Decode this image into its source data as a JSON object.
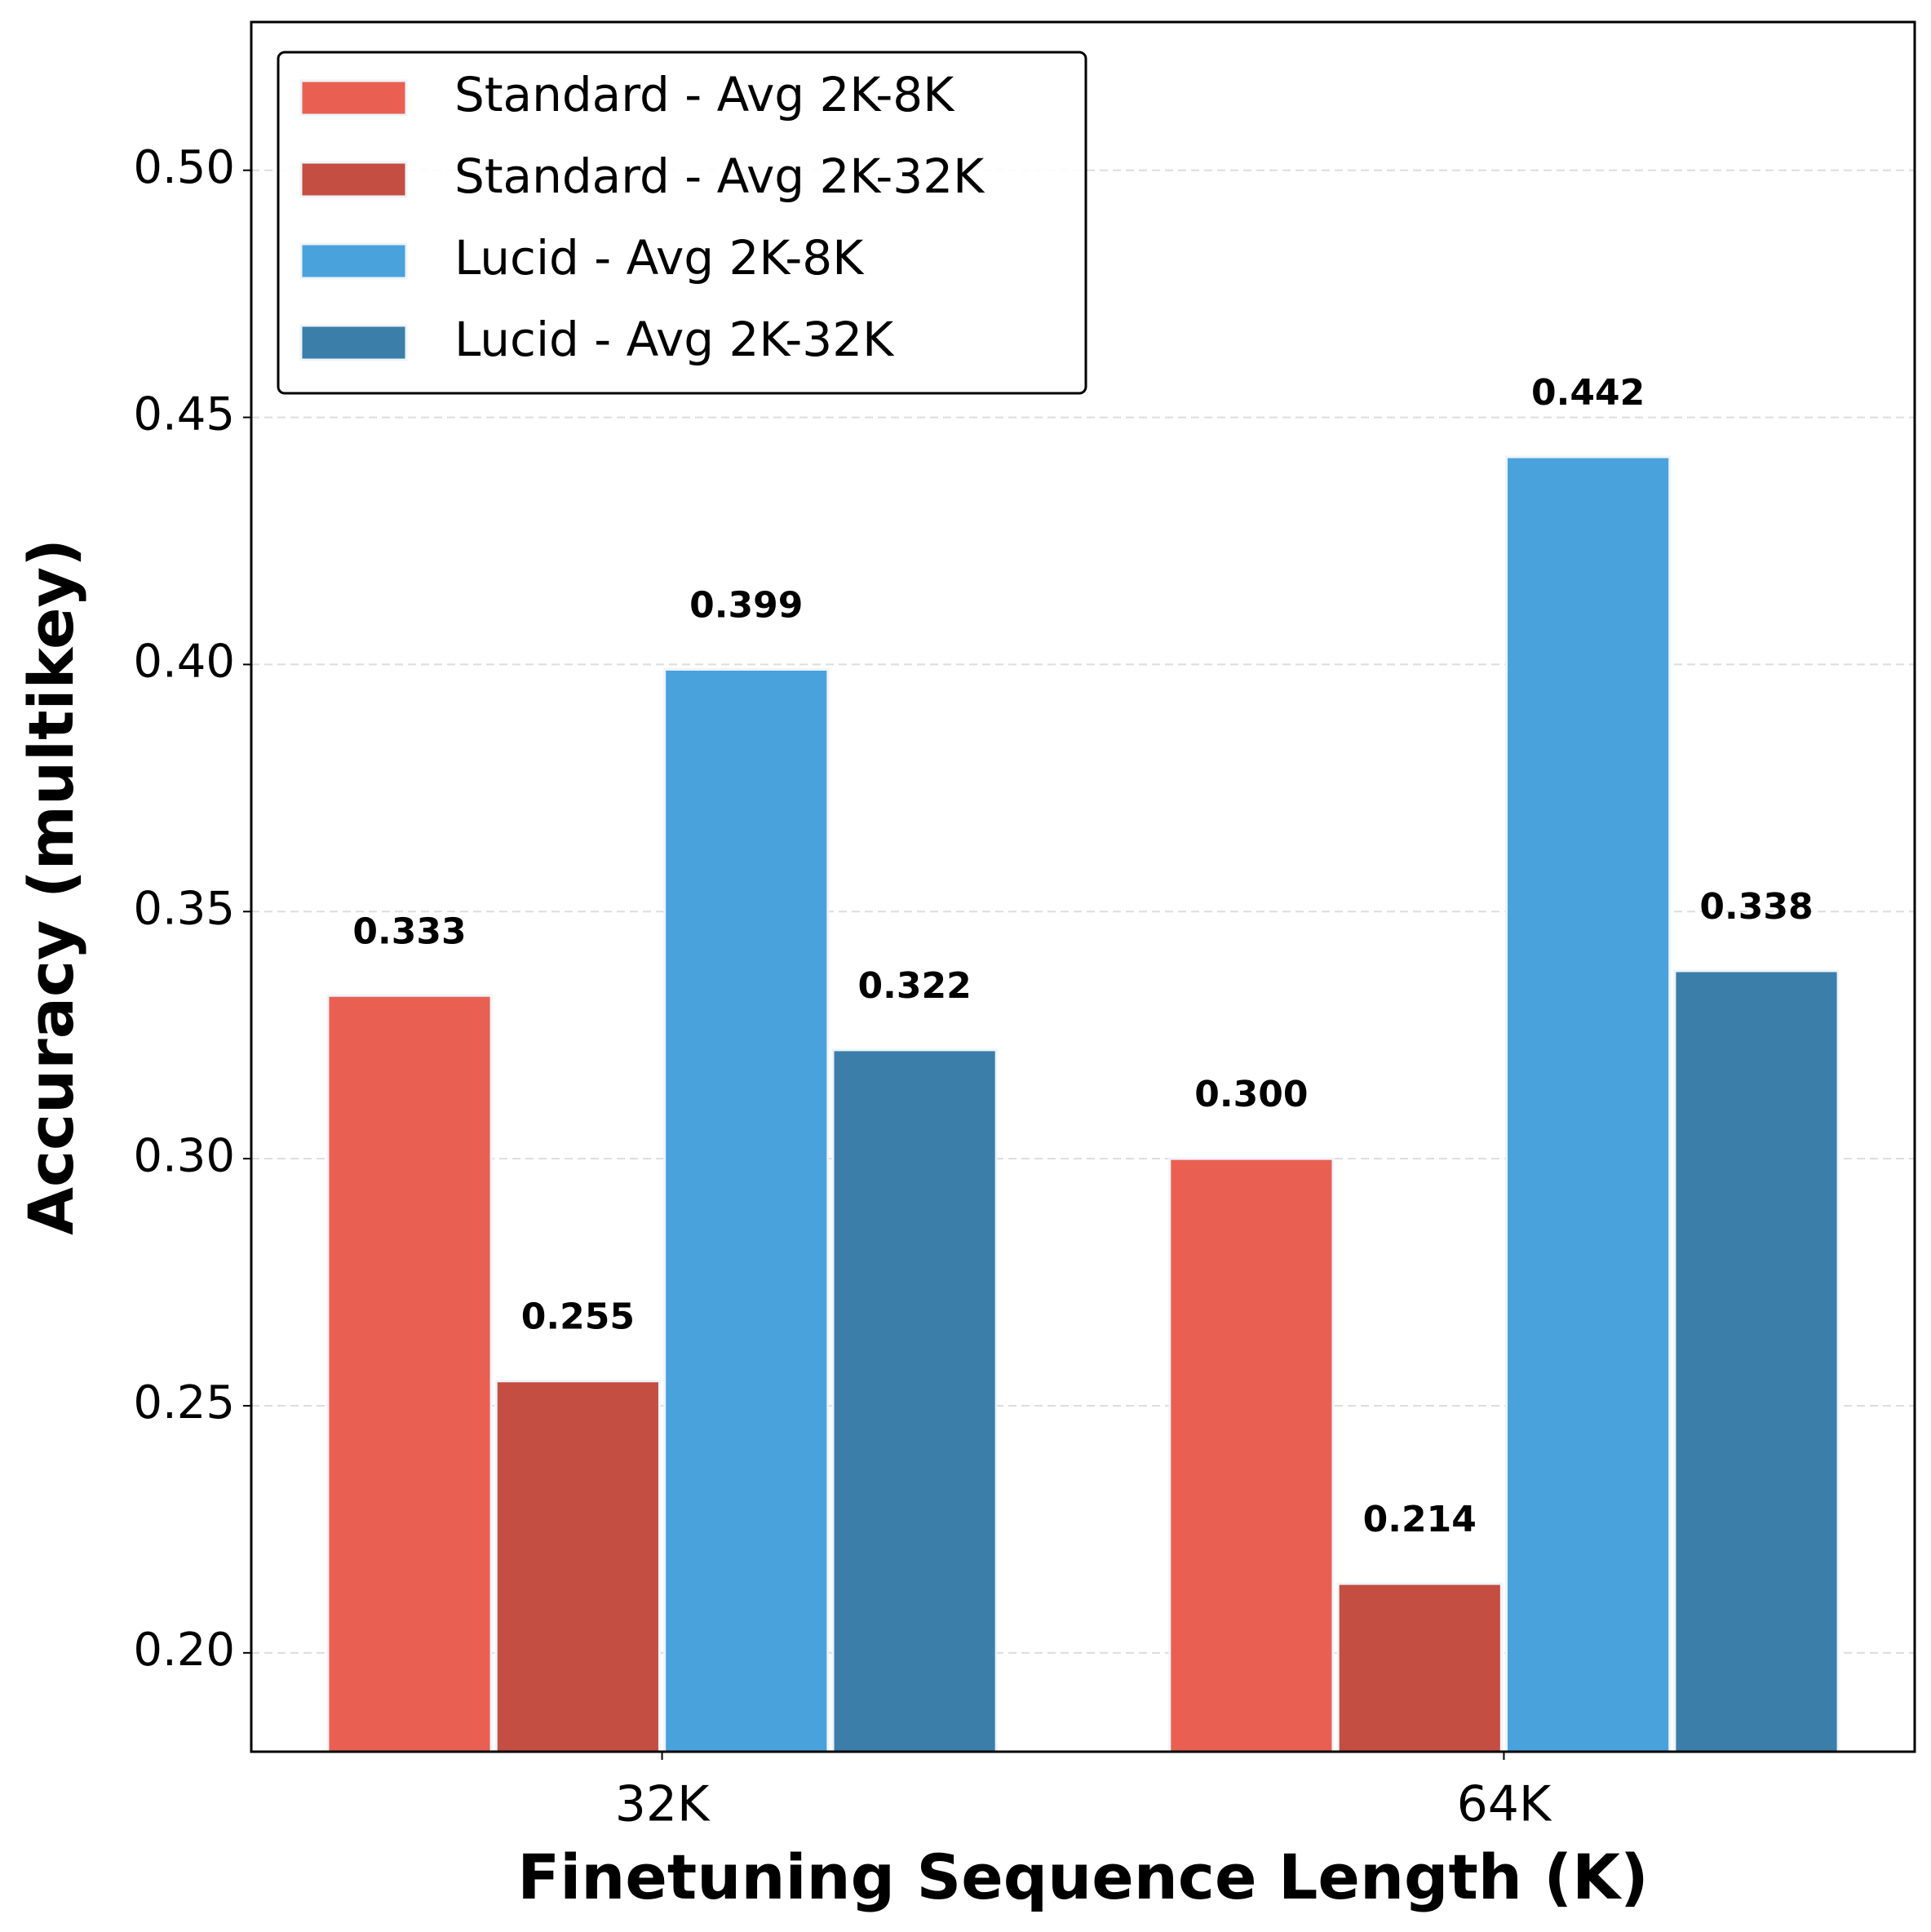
{
  "chart_data": {
    "type": "bar",
    "xlabel": "Finetuning Sequence Length (K)",
    "ylabel": "Accuracy (multikey)",
    "categories": [
      "32K",
      "64K"
    ],
    "series": [
      {
        "name": "Standard - Avg 2K-8K",
        "color": "#e96052",
        "values": [
          0.333,
          0.3
        ],
        "value_labels": [
          "0.333",
          "0.300"
        ]
      },
      {
        "name": "Standard - Avg 2K-32K",
        "color": "#c44e41",
        "values": [
          0.255,
          0.214
        ],
        "value_labels": [
          "0.255",
          "0.214"
        ]
      },
      {
        "name": "Lucid - Avg 2K-8K",
        "color": "#4aa2dd",
        "values": [
          0.399,
          0.442
        ],
        "value_labels": [
          "0.399",
          "0.442"
        ]
      },
      {
        "name": "Lucid - Avg 2K-32K",
        "color": "#3b7eaa",
        "values": [
          0.322,
          0.338
        ],
        "value_labels": [
          "0.322",
          "0.338"
        ]
      }
    ],
    "ylim": [
      0.18,
      0.53
    ],
    "yticks": [
      {
        "value": 0.2,
        "label": "0.20"
      },
      {
        "value": 0.25,
        "label": "0.25"
      },
      {
        "value": 0.3,
        "label": "0.30"
      },
      {
        "value": 0.35,
        "label": "0.35"
      },
      {
        "value": 0.4,
        "label": "0.40"
      },
      {
        "value": 0.45,
        "label": "0.45"
      },
      {
        "value": 0.5,
        "label": "0.50"
      }
    ],
    "grid": true,
    "legend": "upper left"
  }
}
